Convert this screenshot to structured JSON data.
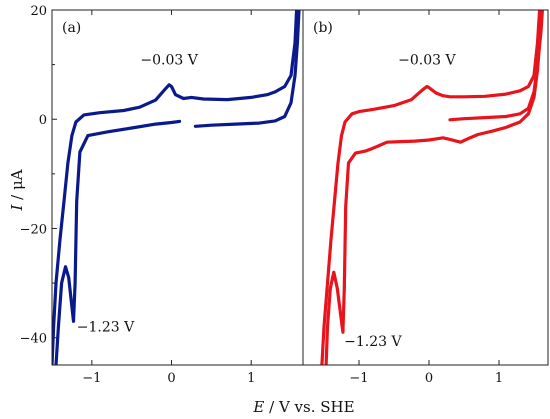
{
  "chart_data": [
    {
      "type": "line",
      "panel_label": "(a)",
      "xlim": [
        -1.5,
        1.65
      ],
      "ylim": [
        -45,
        20
      ],
      "ylabel_var": "I",
      "ylabel_unit": " / μA",
      "x_ticks": [
        -1,
        0,
        1
      ],
      "x_tick_labels": [
        "−1",
        "0",
        "1"
      ],
      "y_ticks": [
        20,
        0,
        -20,
        -40
      ],
      "y_tick_labels": [
        "20",
        "0",
        "−20",
        "−40"
      ],
      "color": "#0a1a8c",
      "annotations": [
        {
          "text": "−0.03 V",
          "x": -0.03,
          "y": 6
        },
        {
          "text": "−1.23 V",
          "x": -1.23,
          "y": -37
        }
      ],
      "series": [
        {
          "segments": [
            [
              [
                0.3,
                -1.3
              ],
              [
                0.5,
                -1.1
              ],
              [
                0.8,
                -0.9
              ],
              [
                1.1,
                -0.7
              ],
              [
                1.3,
                -0.3
              ],
              [
                1.42,
                0.5
              ],
              [
                1.5,
                3
              ],
              [
                1.55,
                8
              ],
              [
                1.58,
                14
              ],
              [
                1.6,
                20
              ]
            ],
            [
              [
                1.57,
                20
              ],
              [
                1.55,
                14
              ],
              [
                1.5,
                8
              ],
              [
                1.42,
                6
              ],
              [
                1.3,
                5
              ],
              [
                1.2,
                4.5
              ],
              [
                1.0,
                4
              ],
              [
                0.7,
                3.6
              ],
              [
                0.4,
                3.7
              ],
              [
                0.25,
                4
              ],
              [
                0.15,
                3.8
              ],
              [
                0.05,
                4.5
              ],
              [
                0.0,
                6
              ],
              [
                -0.03,
                6.3
              ],
              [
                -0.08,
                5.5
              ],
              [
                -0.2,
                3.5
              ],
              [
                -0.4,
                2.2
              ],
              [
                -0.6,
                1.6
              ],
              [
                -0.9,
                1.2
              ],
              [
                -1.1,
                0.8
              ],
              [
                -1.2,
                -0.5
              ],
              [
                -1.25,
                -3
              ],
              [
                -1.3,
                -8
              ],
              [
                -1.35,
                -15
              ],
              [
                -1.4,
                -22
              ],
              [
                -1.45,
                -30
              ],
              [
                -1.48,
                -38
              ],
              [
                -1.5,
                -45
              ]
            ],
            [
              [
                -1.45,
                -45
              ],
              [
                -1.42,
                -38
              ],
              [
                -1.38,
                -30
              ],
              [
                -1.33,
                -27
              ],
              [
                -1.29,
                -29
              ],
              [
                -1.26,
                -33
              ],
              [
                -1.23,
                -37
              ],
              [
                -1.21,
                -30
              ],
              [
                -1.19,
                -15
              ],
              [
                -1.15,
                -6
              ],
              [
                -1.05,
                -3
              ],
              [
                -0.8,
                -2.3
              ],
              [
                -0.5,
                -1.6
              ],
              [
                -0.2,
                -0.9
              ],
              [
                0.0,
                -0.6
              ],
              [
                0.1,
                -0.4
              ]
            ]
          ]
        }
      ]
    },
    {
      "type": "line",
      "panel_label": "(b)",
      "xlim": [
        -1.8,
        1.7
      ],
      "ylim": [
        -45,
        20
      ],
      "x_ticks": [
        -1,
        0,
        1
      ],
      "x_tick_labels": [
        "−1",
        "0",
        "1"
      ],
      "color": "#e8141c",
      "annotations": [
        {
          "text": "−0.03 V",
          "x": -0.03,
          "y": 6
        },
        {
          "text": "−1.23 V",
          "x": -1.23,
          "y": -39
        }
      ],
      "series": [
        {
          "segments": [
            [
              [
                0.3,
                -0.1
              ],
              [
                0.5,
                0.1
              ],
              [
                0.8,
                0.3
              ],
              [
                1.1,
                0.5
              ],
              [
                1.3,
                1.0
              ],
              [
                1.42,
                2
              ],
              [
                1.5,
                5
              ],
              [
                1.55,
                10
              ],
              [
                1.6,
                16
              ],
              [
                1.62,
                20
              ]
            ],
            [
              [
                1.58,
                20
              ],
              [
                1.55,
                14
              ],
              [
                1.5,
                8
              ],
              [
                1.42,
                6
              ],
              [
                1.3,
                5.2
              ],
              [
                1.1,
                4.6
              ],
              [
                0.8,
                4.2
              ],
              [
                0.5,
                4.1
              ],
              [
                0.3,
                4.1
              ],
              [
                0.2,
                4.3
              ],
              [
                0.1,
                4.8
              ],
              [
                0.0,
                5.8
              ],
              [
                -0.03,
                6.0
              ],
              [
                -0.1,
                5.3
              ],
              [
                -0.25,
                3.6
              ],
              [
                -0.5,
                2.5
              ],
              [
                -0.8,
                1.8
              ],
              [
                -1.0,
                1.4
              ],
              [
                -1.1,
                1.0
              ],
              [
                -1.2,
                -0.5
              ],
              [
                -1.25,
                -3
              ],
              [
                -1.3,
                -8
              ],
              [
                -1.35,
                -15
              ],
              [
                -1.4,
                -22
              ],
              [
                -1.45,
                -30
              ],
              [
                -1.5,
                -38
              ],
              [
                -1.53,
                -45
              ]
            ],
            [
              [
                -1.47,
                -45
              ],
              [
                -1.45,
                -38
              ],
              [
                -1.41,
                -31
              ],
              [
                -1.36,
                -28
              ],
              [
                -1.31,
                -31
              ],
              [
                -1.26,
                -36
              ],
              [
                -1.23,
                -39
              ],
              [
                -1.21,
                -31
              ],
              [
                -1.19,
                -16
              ],
              [
                -1.15,
                -8
              ],
              [
                -1.05,
                -6.2
              ],
              [
                -0.9,
                -5.8
              ],
              [
                -0.8,
                -5.3
              ],
              [
                -0.6,
                -4.2
              ],
              [
                -0.4,
                -4.1
              ],
              [
                -0.2,
                -4.0
              ],
              [
                0.0,
                -3.8
              ],
              [
                0.1,
                -3.6
              ],
              [
                0.2,
                -3.4
              ],
              [
                0.3,
                -3.7
              ],
              [
                0.45,
                -4.2
              ],
              [
                0.55,
                -3.6
              ],
              [
                0.7,
                -2.8
              ],
              [
                0.9,
                -2.2
              ],
              [
                1.1,
                -1.5
              ],
              [
                1.3,
                -0.5
              ],
              [
                1.42,
                1
              ],
              [
                1.5,
                4
              ],
              [
                1.55,
                9
              ],
              [
                1.58,
                14
              ],
              [
                1.6,
                20
              ]
            ]
          ]
        }
      ]
    }
  ],
  "axis_title": {
    "xlabel_var": "E",
    "xlabel_unit": " / V vs. SHE"
  }
}
